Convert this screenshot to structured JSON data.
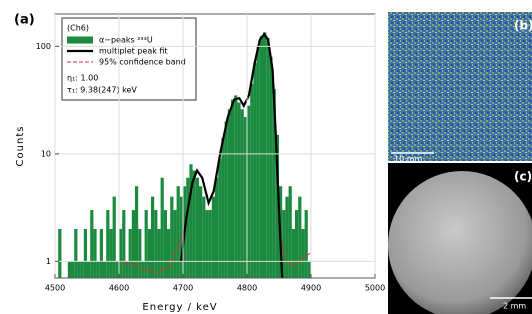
{
  "chart_data": {
    "type": "histogram",
    "panel_label": "(a)",
    "xlabel": "Energy / keV",
    "ylabel": "Counts",
    "yscale": "log",
    "grid": true,
    "xlim": [
      4500,
      5000
    ],
    "xticks": [
      4500,
      4600,
      4700,
      4800,
      4900,
      5000
    ],
    "ylim": [
      0.7,
      200
    ],
    "yticks": [
      1,
      10,
      100
    ],
    "bins": [
      4500,
      4505,
      4510,
      4515,
      4520,
      4525,
      4530,
      4535,
      4540,
      4545,
      4550,
      4555,
      4560,
      4565,
      4570,
      4575,
      4580,
      4585,
      4590,
      4595,
      4600,
      4605,
      4610,
      4615,
      4620,
      4625,
      4630,
      4635,
      4640,
      4645,
      4650,
      4655,
      4660,
      4665,
      4670,
      4675,
      4680,
      4685,
      4690,
      4695,
      4700,
      4705,
      4710,
      4715,
      4720,
      4725,
      4730,
      4735,
      4740,
      4745,
      4750,
      4755,
      4760,
      4765,
      4770,
      4775,
      4780,
      4785,
      4790,
      4795,
      4800,
      4805,
      4810,
      4815,
      4820,
      4825,
      4830,
      4835,
      4840,
      4845,
      4850,
      4855,
      4860,
      4865,
      4870,
      4875,
      4880,
      4885,
      4890,
      4895,
      4900
    ],
    "annotations": [
      "(Ch6)",
      "η₁: 1.00",
      "τ₁: 9.38(247) keV"
    ],
    "series": [
      {
        "name": "α−peaks ²³³U",
        "color": "#1b8a3f",
        "values": [
          0,
          2,
          0,
          0,
          1,
          1,
          2,
          1,
          1,
          2,
          1,
          3,
          2,
          1,
          2,
          1,
          3,
          2,
          4,
          1,
          2,
          3,
          1,
          2,
          3,
          5,
          2,
          1,
          3,
          2,
          4,
          3,
          2,
          6,
          3,
          2,
          4,
          3,
          5,
          4,
          5,
          6,
          8,
          7,
          6,
          5,
          4,
          3,
          3,
          4,
          6,
          9,
          14,
          20,
          26,
          32,
          35,
          30,
          26,
          22,
          28,
          45,
          70,
          100,
          125,
          135,
          120,
          80,
          40,
          15,
          5,
          3,
          4,
          5,
          2,
          3,
          4,
          2,
          3,
          1
        ]
      },
      {
        "name": "multiplet peak fit",
        "color": "#000000",
        "x": [
          4697,
          4705,
          4715,
          4722,
          4730,
          4740,
          4748,
          4758,
          4770,
          4780,
          4788,
          4795,
          4803,
          4812,
          4820,
          4827,
          4833,
          4840,
          4845,
          4850,
          4855
        ],
        "values": [
          1,
          2.5,
          5.5,
          7,
          6,
          3.5,
          4.5,
          10,
          22,
          32,
          33,
          28,
          35,
          70,
          115,
          130,
          115,
          60,
          15,
          3,
          0.7
        ]
      },
      {
        "name": "95% confidence band",
        "color": "#e03030",
        "x": [
          4600,
          4620,
          4640,
          4660,
          4680,
          4700,
          4715,
          4722,
          4730,
          4740,
          4748,
          4758,
          4770,
          4780,
          4788,
          4795,
          4803,
          4812,
          4820,
          4827,
          4833,
          4840,
          4845,
          4850,
          4855,
          4860,
          4875,
          4890,
          4900
        ],
        "values": [
          1,
          0.95,
          0.85,
          0.78,
          0.9,
          1.8,
          5.5,
          7,
          6,
          3.5,
          4.5,
          10,
          22,
          32,
          33,
          28,
          35,
          70,
          115,
          130,
          115,
          60,
          15,
          3,
          1.3,
          1,
          0.9,
          1.1,
          1.2
        ]
      }
    ]
  },
  "images": {
    "b_label": "(b)",
    "b_scale": "10 mm",
    "c_label": "(c)",
    "c_scale": "2 mm"
  }
}
